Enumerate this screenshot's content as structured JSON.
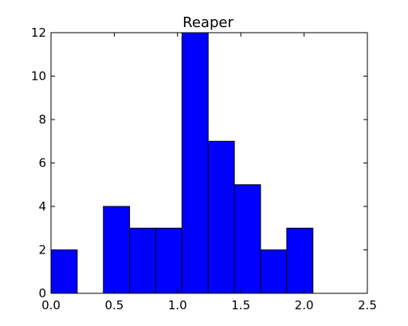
{
  "chart_data": {
    "type": "bar",
    "title": "Reaper",
    "xlabel": "",
    "ylabel": "",
    "xlim": [
      0,
      2.5
    ],
    "ylim": [
      0,
      12
    ],
    "bar_color": "#0000ff",
    "edge_color": "#000000",
    "grid": false,
    "bin_edges": [
      0.0,
      0.207,
      0.414,
      0.621,
      0.828,
      1.035,
      1.242,
      1.449,
      1.656,
      1.863,
      2.07
    ],
    "values": [
      2,
      0,
      4,
      3,
      3,
      12,
      7,
      5,
      2,
      3
    ],
    "x_ticks": [
      0.0,
      0.5,
      1.0,
      1.5,
      2.0,
      2.5
    ],
    "x_tick_labels": [
      "0.0",
      "0.5",
      "1.0",
      "1.5",
      "2.0",
      "2.5"
    ],
    "y_ticks": [
      0,
      2,
      4,
      6,
      8,
      10,
      12
    ],
    "y_tick_labels": [
      "0",
      "2",
      "4",
      "6",
      "8",
      "10",
      "12"
    ]
  }
}
